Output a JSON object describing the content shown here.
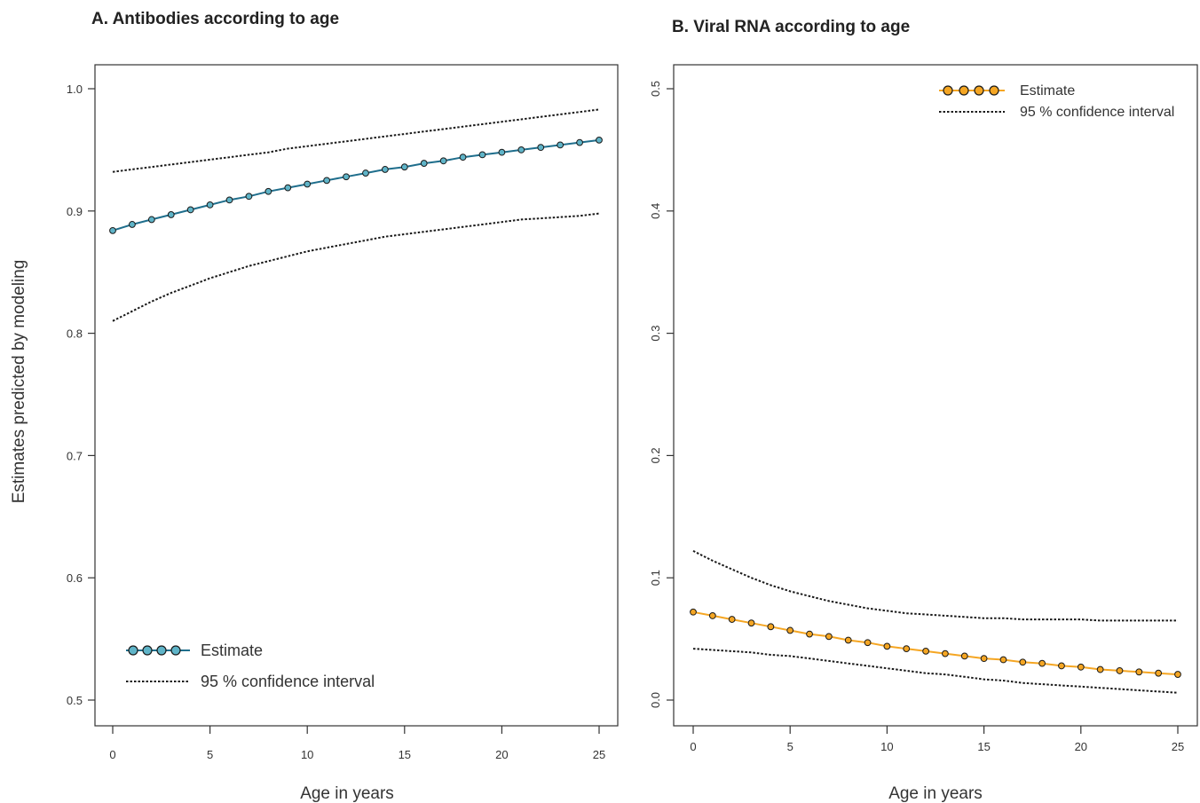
{
  "chart_data": [
    {
      "panel": "A",
      "type": "line",
      "title": "A. Antibodies according to age",
      "xlabel": "Age in years",
      "ylabel": "Estimates predicted by modeling",
      "xlim": [
        0,
        25
      ],
      "ylim": [
        0.5,
        1.0
      ],
      "xticks": [
        "0",
        "5",
        "10",
        "15",
        "20",
        "25"
      ],
      "yticks": [
        "0.5",
        "0.6",
        "0.7",
        "0.8",
        "0.9",
        "1.0"
      ],
      "legend_position": "bottom-left",
      "x": [
        0,
        1,
        2,
        3,
        4,
        5,
        6,
        7,
        8,
        9,
        10,
        11,
        12,
        13,
        14,
        15,
        16,
        17,
        18,
        19,
        20,
        21,
        22,
        23,
        24,
        25
      ],
      "series": [
        {
          "name": "Estimate",
          "style": "line-with-circles",
          "color": "#1f6e8c",
          "marker_fill": "#5fb4c8",
          "values": [
            0.884,
            0.889,
            0.893,
            0.897,
            0.901,
            0.905,
            0.909,
            0.912,
            0.916,
            0.919,
            0.922,
            0.925,
            0.928,
            0.931,
            0.934,
            0.936,
            0.939,
            0.941,
            0.944,
            0.946,
            0.948,
            0.95,
            0.952,
            0.954,
            0.956,
            0.958
          ]
        },
        {
          "name": "95 % confidence interval",
          "style": "dotted",
          "color": "#1a1a1a",
          "upper": [
            0.932,
            0.934,
            0.936,
            0.938,
            0.94,
            0.942,
            0.944,
            0.946,
            0.948,
            0.951,
            0.953,
            0.955,
            0.957,
            0.959,
            0.961,
            0.963,
            0.965,
            0.967,
            0.969,
            0.971,
            0.973,
            0.975,
            0.977,
            0.979,
            0.981,
            0.983
          ],
          "lower": [
            0.81,
            0.818,
            0.826,
            0.833,
            0.839,
            0.845,
            0.85,
            0.855,
            0.859,
            0.863,
            0.867,
            0.87,
            0.873,
            0.876,
            0.879,
            0.881,
            0.883,
            0.885,
            0.887,
            0.889,
            0.891,
            0.893,
            0.894,
            0.895,
            0.896,
            0.898
          ]
        }
      ]
    },
    {
      "panel": "B",
      "type": "line",
      "title": "B. Viral RNA according to age",
      "xlabel": "Age in years",
      "ylabel": "",
      "xlim": [
        0,
        25
      ],
      "ylim": [
        0.0,
        0.5
      ],
      "xticks": [
        "0",
        "5",
        "10",
        "15",
        "20",
        "25"
      ],
      "yticks": [
        "0.0",
        "0.1",
        "0.2",
        "0.3",
        "0.4",
        "0.5"
      ],
      "legend_position": "top-right",
      "x": [
        0,
        1,
        2,
        3,
        4,
        5,
        6,
        7,
        8,
        9,
        10,
        11,
        12,
        13,
        14,
        15,
        16,
        17,
        18,
        19,
        20,
        21,
        22,
        23,
        24,
        25
      ],
      "series": [
        {
          "name": "Estimate",
          "style": "line-with-circles",
          "color": "#f5a623",
          "marker_fill": "#f5a623",
          "values": [
            0.072,
            0.069,
            0.066,
            0.063,
            0.06,
            0.057,
            0.054,
            0.052,
            0.049,
            0.047,
            0.044,
            0.042,
            0.04,
            0.038,
            0.036,
            0.034,
            0.033,
            0.031,
            0.03,
            0.028,
            0.027,
            0.025,
            0.024,
            0.023,
            0.022,
            0.021
          ]
        },
        {
          "name": "95 % confidence interval",
          "style": "dotted",
          "color": "#1a1a1a",
          "upper": [
            0.122,
            0.114,
            0.107,
            0.1,
            0.094,
            0.089,
            0.085,
            0.081,
            0.078,
            0.075,
            0.073,
            0.071,
            0.07,
            0.069,
            0.068,
            0.067,
            0.067,
            0.066,
            0.066,
            0.066,
            0.066,
            0.065,
            0.065,
            0.065,
            0.065,
            0.065
          ],
          "lower": [
            0.042,
            0.041,
            0.04,
            0.039,
            0.037,
            0.036,
            0.034,
            0.032,
            0.03,
            0.028,
            0.026,
            0.024,
            0.022,
            0.021,
            0.019,
            0.017,
            0.016,
            0.014,
            0.013,
            0.012,
            0.011,
            0.01,
            0.009,
            0.008,
            0.007,
            0.006
          ]
        }
      ]
    }
  ]
}
